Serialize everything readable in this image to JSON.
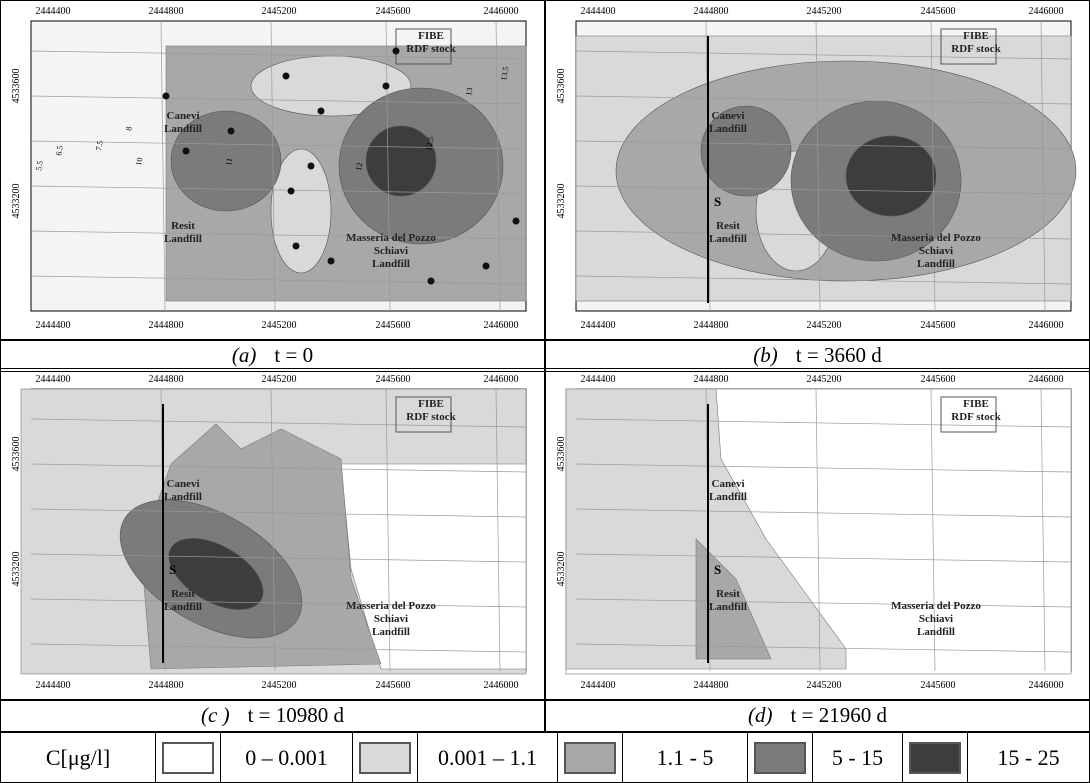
{
  "axes": {
    "x_ticks": [
      "2444400",
      "2444800",
      "2445200",
      "2445600",
      "2446000"
    ],
    "y_ticks": [
      "4533600",
      "4533200"
    ]
  },
  "places": {
    "canevi": [
      "Canevi",
      "Landfill"
    ],
    "resit": [
      "Resit",
      "Landfill"
    ],
    "schiavi": [
      "Masseria del Pozzo",
      "Schiavi",
      "Landfill"
    ],
    "fibe": [
      "FIBE",
      "RDF stock"
    ],
    "well": "S"
  },
  "contour_labels": [
    "5.5",
    "6.5",
    "7.5",
    "8",
    "10",
    "11",
    "12",
    "12.5",
    "13",
    "13.5"
  ],
  "panels": [
    {
      "label": "(a)",
      "time": "t = 0"
    },
    {
      "label": "(b)",
      "time": "t = 3660 d"
    },
    {
      "label": "(c )",
      "time": "t = 10980 d"
    },
    {
      "label": "(d)",
      "time": "t = 21960 d"
    }
  ],
  "legend": {
    "title": "C[μg/l]",
    "entries": [
      {
        "label": "0 – 0.001",
        "color": "#ffffff"
      },
      {
        "label": "0.001 – 1.1",
        "color": "#d9d9d9"
      },
      {
        "label": "1.1 - 5",
        "color": "#a8a8a8"
      },
      {
        "label": "5 - 15",
        "color": "#7b7b7b"
      },
      {
        "label": "15 - 25",
        "color": "#3d3d3d"
      }
    ]
  }
}
